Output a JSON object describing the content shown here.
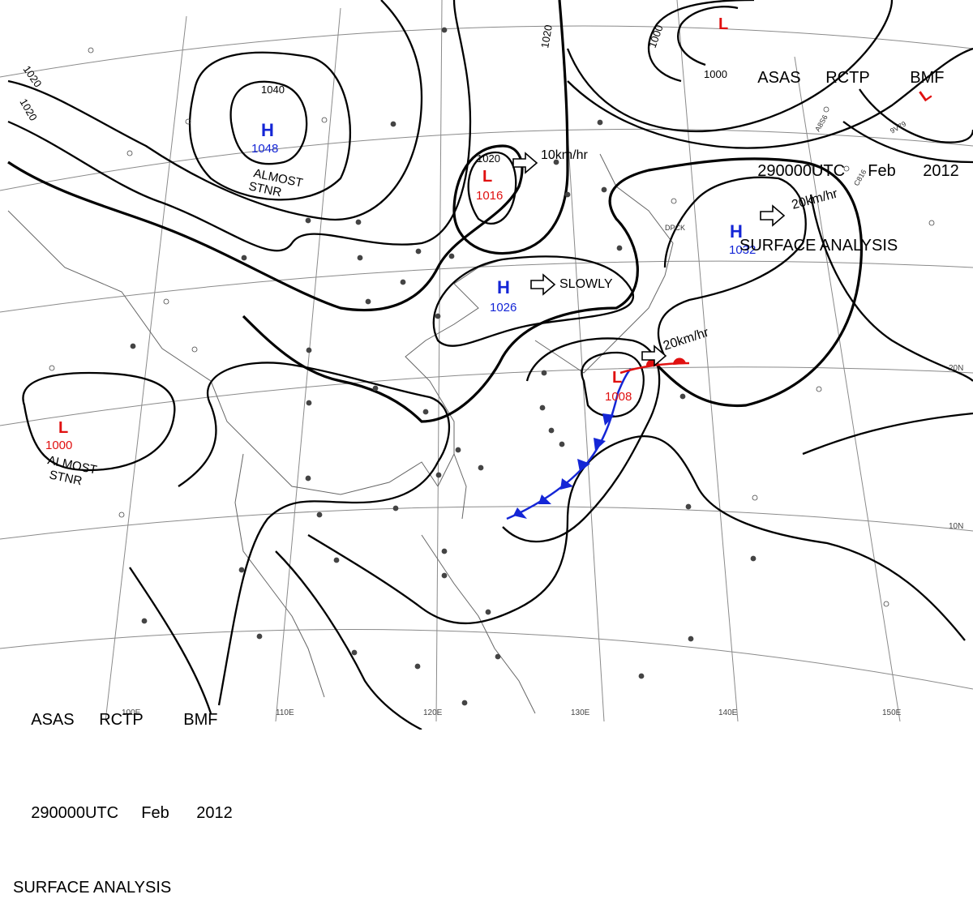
{
  "header": {
    "lines": [
      [
        "ASAS",
        "RCTP",
        "BMF"
      ],
      [
        "290000UTC",
        "Feb",
        "2012"
      ],
      [
        "SURFACE ANALYSIS"
      ]
    ]
  },
  "colors": {
    "high": "#1426d6",
    "low": "#e01010",
    "cold_front": "#1426d6",
    "warm_front": "#e01010",
    "isobar": "#000000",
    "grid": "#8a8a8a",
    "coast": "#666666"
  },
  "pressure_centers": [
    {
      "kind": "H",
      "value": "1048",
      "note": [
        "ALMOST",
        "STNR"
      ]
    },
    {
      "kind": "L",
      "value": "1016",
      "note": []
    },
    {
      "kind": "H",
      "value": "1026",
      "note": []
    },
    {
      "kind": "H",
      "value": "1032",
      "note": []
    },
    {
      "kind": "L",
      "value": "1008",
      "note": []
    },
    {
      "kind": "L",
      "value": "1000",
      "note": [
        "ALMOST",
        "STNR"
      ]
    },
    {
      "kind": "L",
      "value": "",
      "note": []
    },
    {
      "kind": "L",
      "value": "",
      "note": []
    }
  ],
  "movements": [
    "10km/hr",
    "SLOWLY",
    "20km/hr",
    "20km/hr"
  ],
  "isobar_labels": [
    "1040",
    "1020",
    "1020",
    "1020",
    "1020",
    "1000",
    "1000"
  ],
  "longitude_labels": [
    "100E",
    "110E",
    "120E",
    "130E",
    "140E",
    "150E"
  ],
  "latitude_labels": [
    "20N",
    "10N"
  ],
  "station_codes": [
    "DPCK",
    "C816",
    "A8S6",
    "9V79"
  ]
}
